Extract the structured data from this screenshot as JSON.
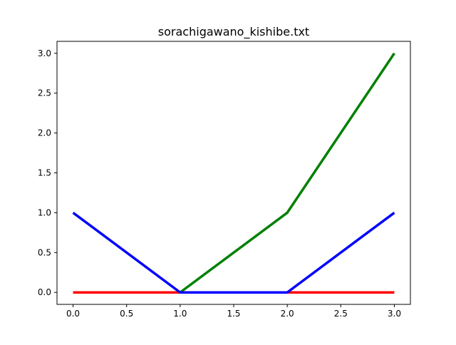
{
  "chart_data": {
    "type": "line",
    "title": "sorachigawano_kishibe.txt",
    "xlabel": "",
    "ylabel": "",
    "xlim": [
      -0.15,
      3.15
    ],
    "ylim": [
      -0.15,
      3.15
    ],
    "x_ticks": [
      "0.0",
      "0.5",
      "1.0",
      "1.5",
      "2.0",
      "2.5",
      "3.0"
    ],
    "y_ticks": [
      "0.0",
      "0.5",
      "1.0",
      "1.5",
      "2.0",
      "2.5",
      "3.0"
    ],
    "grid": false,
    "x": [
      0,
      1,
      2,
      3
    ],
    "series": [
      {
        "color": "#ff0000",
        "values": [
          0,
          0,
          0,
          0
        ]
      },
      {
        "color": "#008000",
        "values": [
          null,
          0,
          1,
          3
        ]
      },
      {
        "color": "#0000ff",
        "values": [
          1,
          0,
          0,
          1
        ]
      }
    ]
  }
}
